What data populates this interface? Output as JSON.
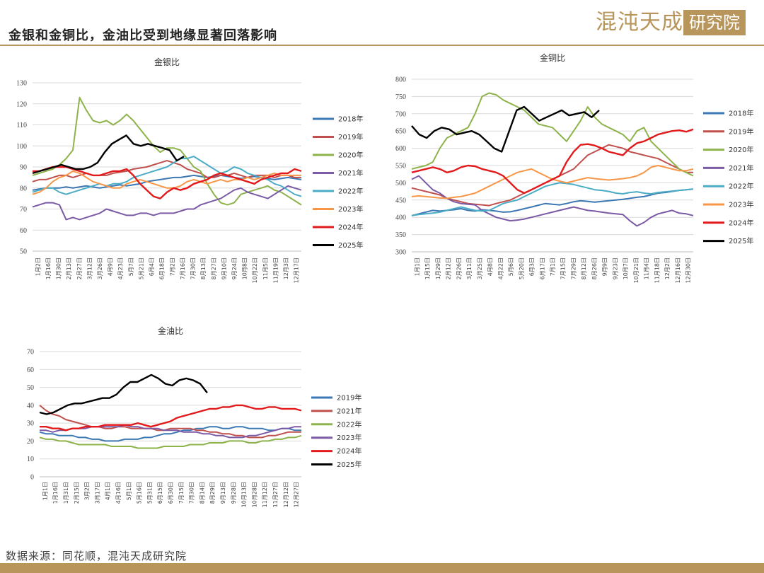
{
  "header": {
    "title": "金银和金铜比，金油比受到地缘显著回落影响"
  },
  "logo": {
    "text_left": "混沌天成",
    "text_box": "研究院"
  },
  "footer": {
    "source": "数据来源：同花顺，混沌天成研究院"
  },
  "colors": {
    "accent": "#b8955a"
  },
  "chart_data": [
    {
      "type": "line",
      "title": "金银比",
      "ylim": [
        50,
        130
      ],
      "yticks": [
        50,
        60,
        70,
        80,
        90,
        100,
        110,
        120,
        130
      ],
      "grid": true,
      "legend_position": "right",
      "xticks": [
        "1月2日",
        "1月16日",
        "1月30日",
        "2月13日",
        "2月27日",
        "3月12日",
        "3月26日",
        "4月9日",
        "4月23日",
        "5月7日",
        "5月21日",
        "6月4日",
        "6月18日",
        "7月2日",
        "7月16日",
        "7月30日",
        "8月13日",
        "8月27日",
        "9月10日",
        "9月24日",
        "10月8日",
        "10月22日",
        "11月5日",
        "11月19日",
        "12月3日",
        "12月17日"
      ],
      "series": [
        {
          "name": "2018年",
          "color": "#3c78b4",
          "values": [
            79,
            79.5,
            80,
            80,
            80,
            80.5,
            80,
            80.5,
            81,
            80.5,
            80,
            80.5,
            81,
            81.5,
            81,
            81.5,
            82,
            83,
            83.5,
            84,
            84.5,
            85,
            85,
            85.5,
            86,
            85.5,
            85,
            85.5,
            86,
            85.5,
            85,
            84.5,
            85,
            85.5,
            85,
            84.5,
            84,
            84.5,
            85,
            84.5,
            84
          ]
        },
        {
          "name": "2019年",
          "color": "#c0504d",
          "values": [
            83,
            84,
            84,
            85,
            86,
            86,
            85,
            86,
            87,
            86,
            86,
            86,
            87,
            87.5,
            88,
            89,
            89.5,
            90,
            91,
            92,
            93,
            92,
            91,
            89,
            88,
            87,
            85,
            85,
            86,
            86,
            87,
            86,
            85,
            86,
            86,
            86,
            85,
            86,
            86,
            85,
            85
          ]
        },
        {
          "name": "2020年",
          "color": "#8db34a",
          "values": [
            86,
            87,
            88,
            89,
            91,
            94,
            98,
            123,
            117,
            112,
            111,
            112,
            110,
            112,
            115,
            112,
            108,
            104,
            100,
            97,
            99,
            99,
            98,
            94,
            90,
            88,
            82,
            77,
            73,
            72,
            73,
            77,
            78,
            79,
            80,
            81,
            79,
            78,
            76,
            74,
            72
          ]
        },
        {
          "name": "2021年",
          "color": "#7b5aa6",
          "values": [
            71,
            72,
            73,
            73,
            72,
            65,
            66,
            65,
            66,
            67,
            68,
            70,
            69,
            68,
            67,
            67,
            68,
            68,
            67,
            68,
            68,
            68,
            69,
            70,
            70,
            72,
            73,
            74,
            75,
            77,
            79,
            80,
            78,
            77,
            76,
            75,
            77,
            79,
            81,
            80,
            79
          ]
        },
        {
          "name": "2022年",
          "color": "#4bacc6",
          "values": [
            78,
            79,
            80,
            80,
            78,
            77,
            78,
            79,
            80,
            81,
            82,
            81,
            82,
            82,
            83,
            85,
            86,
            87,
            88,
            89,
            90,
            92,
            94,
            94,
            95,
            93,
            91,
            89,
            87,
            88,
            90,
            89,
            87,
            86,
            85,
            84,
            82,
            81,
            79,
            77,
            76
          ]
        },
        {
          "name": "2023年",
          "color": "#f79646",
          "values": [
            77,
            78,
            80,
            83,
            85,
            86,
            88,
            87,
            85,
            83,
            82,
            81,
            80,
            80,
            82,
            83,
            84,
            83,
            82,
            81,
            80,
            80,
            81,
            83,
            84,
            83,
            82,
            83,
            84,
            83,
            84,
            84,
            85,
            84,
            85,
            86,
            87,
            86,
            86,
            86,
            86
          ]
        },
        {
          "name": "2024年",
          "color": "#e31a1c",
          "values": [
            88,
            88,
            89,
            90,
            90,
            90,
            89,
            88,
            87,
            86,
            86,
            87,
            88,
            88,
            89,
            86,
            82,
            79,
            76,
            75,
            78,
            80,
            79,
            80,
            82,
            83,
            84,
            86,
            87,
            86,
            85,
            84,
            83,
            82,
            84,
            85,
            86,
            87,
            87,
            89,
            88
          ]
        },
        {
          "name": "2025年",
          "color": "#000000",
          "values": [
            87,
            88,
            89,
            90,
            91,
            90,
            89,
            89,
            90,
            92,
            97,
            101,
            103,
            105,
            101,
            100,
            101,
            100,
            99,
            98,
            93,
            95
          ]
        }
      ]
    },
    {
      "type": "line",
      "title": "金铜比",
      "ylim": [
        300,
        800
      ],
      "yticks": [
        300,
        350,
        400,
        450,
        500,
        550,
        600,
        650,
        700,
        750,
        800
      ],
      "grid": true,
      "legend_position": "right",
      "xticks": [
        "1月1日",
        "1月15日",
        "1月29日",
        "2月12日",
        "2月26日",
        "3月11日",
        "3月25日",
        "4月8日",
        "4月22日",
        "5月6日",
        "5月20日",
        "6月3日",
        "6月17日",
        "7月1日",
        "7月15日",
        "7月29日",
        "8月12日",
        "8月26日",
        "9月9日",
        "9月23日",
        "10月7日",
        "10月21日",
        "11月4日",
        "11月18日",
        "12月2日",
        "12月16日",
        "12月30日"
      ],
      "series": [
        {
          "name": "2018年",
          "color": "#3c78b4",
          "values": [
            405,
            410,
            415,
            420,
            418,
            420,
            422,
            425,
            420,
            418,
            422,
            420,
            418,
            415,
            416,
            420,
            425,
            430,
            435,
            440,
            438,
            436,
            440,
            445,
            448,
            446,
            444,
            446,
            448,
            450,
            452,
            455,
            458,
            460,
            465,
            470,
            472,
            475,
            478,
            480,
            482
          ]
        },
        {
          "name": "2019年",
          "color": "#c0504d",
          "values": [
            485,
            480,
            475,
            470,
            465,
            455,
            450,
            445,
            440,
            438,
            436,
            434,
            440,
            445,
            450,
            460,
            470,
            480,
            490,
            500,
            510,
            520,
            530,
            540,
            560,
            580,
            590,
            600,
            610,
            605,
            600,
            590,
            585,
            580,
            575,
            570,
            560,
            550,
            540,
            530,
            530
          ]
        },
        {
          "name": "2020年",
          "color": "#8db34a",
          "values": [
            540,
            545,
            550,
            560,
            600,
            630,
            640,
            650,
            660,
            700,
            750,
            760,
            755,
            740,
            730,
            720,
            710,
            690,
            670,
            665,
            660,
            640,
            620,
            650,
            680,
            720,
            690,
            670,
            660,
            650,
            640,
            620,
            650,
            660,
            620,
            600,
            580,
            560,
            540,
            530,
            520
          ]
        },
        {
          "name": "2021年",
          "color": "#7b5aa6",
          "values": [
            510,
            520,
            500,
            480,
            470,
            455,
            445,
            440,
            438,
            436,
            420,
            410,
            400,
            395,
            390,
            392,
            395,
            400,
            405,
            410,
            415,
            420,
            425,
            430,
            425,
            420,
            418,
            415,
            412,
            410,
            408,
            390,
            375,
            385,
            400,
            410,
            415,
            420,
            412,
            410,
            405
          ]
        },
        {
          "name": "2022年",
          "color": "#4bacc6",
          "values": [
            405,
            408,
            410,
            412,
            415,
            420,
            425,
            430,
            425,
            420,
            418,
            420,
            430,
            440,
            445,
            450,
            460,
            470,
            480,
            490,
            495,
            500,
            498,
            495,
            490,
            485,
            480,
            478,
            475,
            470,
            468,
            472,
            474,
            470,
            468,
            472,
            474,
            476,
            478,
            480,
            482
          ]
        },
        {
          "name": "2023年",
          "color": "#f79646",
          "values": [
            460,
            462,
            460,
            458,
            456,
            455,
            458,
            460,
            465,
            470,
            480,
            490,
            500,
            510,
            520,
            530,
            535,
            540,
            530,
            520,
            510,
            505,
            500,
            505,
            510,
            515,
            512,
            510,
            508,
            510,
            512,
            515,
            520,
            530,
            545,
            550,
            545,
            540,
            535,
            535,
            540
          ]
        },
        {
          "name": "2024年",
          "color": "#e31a1c",
          "values": [
            530,
            535,
            540,
            545,
            540,
            530,
            535,
            545,
            550,
            548,
            540,
            535,
            530,
            520,
            500,
            480,
            470,
            480,
            490,
            500,
            510,
            520,
            560,
            590,
            610,
            612,
            608,
            600,
            590,
            585,
            580,
            600,
            615,
            620,
            630,
            640,
            645,
            650,
            652,
            648,
            655
          ]
        },
        {
          "name": "2025年",
          "color": "#000000",
          "values": [
            665,
            640,
            630,
            650,
            660,
            655,
            640,
            645,
            650,
            640,
            620,
            600,
            590,
            650,
            710,
            720,
            700,
            680,
            690,
            700,
            710,
            695,
            700,
            705,
            690,
            710
          ]
        }
      ]
    },
    {
      "type": "line",
      "title": "金油比",
      "ylim": [
        0,
        70
      ],
      "yticks": [
        0,
        10,
        20,
        30,
        40,
        50,
        60,
        70
      ],
      "grid": true,
      "legend_position": "right",
      "xticks": [
        "1月1日",
        "1月16日",
        "1月31日",
        "2月15日",
        "3月2日",
        "3月17日",
        "4月1日",
        "4月16日",
        "5月1日",
        "5月16日",
        "5月31日",
        "6月15日",
        "6月30日",
        "7月15日",
        "7月30日",
        "8月14日",
        "8月29日",
        "9月13日",
        "9月28日",
        "10月13日",
        "10月28日",
        "11月12日",
        "11月27日",
        "12月12日",
        "12月27日"
      ],
      "series": [
        {
          "name": "2019年",
          "color": "#3c78b4",
          "values": [
            25,
            24,
            24,
            23,
            23,
            23,
            22,
            22,
            21,
            21,
            20,
            20,
            20,
            21,
            21,
            21,
            22,
            22,
            23,
            24,
            24,
            25,
            26,
            26,
            27,
            27,
            28,
            28,
            27,
            27,
            28,
            28,
            27,
            27,
            27,
            26,
            26,
            27,
            27,
            26,
            26
          ]
        },
        {
          "name": "2021年",
          "color": "#c0504d",
          "values": [
            40,
            37,
            35,
            34,
            32,
            31,
            30,
            29,
            28,
            28,
            27,
            27,
            28,
            28,
            27,
            27,
            27,
            27,
            26,
            26,
            27,
            27,
            27,
            27,
            26,
            26,
            25,
            25,
            24,
            24,
            23,
            23,
            22,
            22,
            22,
            23,
            23,
            24,
            25,
            25,
            25
          ]
        },
        {
          "name": "2022年",
          "color": "#8db34a",
          "values": [
            22,
            21,
            21,
            20,
            20,
            19,
            18,
            18,
            18,
            18,
            18,
            17,
            17,
            17,
            17,
            16,
            16,
            16,
            16,
            17,
            17,
            17,
            17,
            18,
            18,
            18,
            19,
            19,
            19,
            20,
            20,
            20,
            19,
            19,
            20,
            20,
            21,
            21,
            22,
            22,
            23
          ]
        },
        {
          "name": "2023年",
          "color": "#7b5aa6",
          "values": [
            26,
            26,
            25,
            26,
            26,
            27,
            27,
            27,
            28,
            28,
            28,
            28,
            28,
            29,
            28,
            28,
            27,
            27,
            27,
            26,
            26,
            26,
            25,
            25,
            25,
            24,
            24,
            23,
            23,
            22,
            22,
            22,
            23,
            23,
            24,
            25,
            26,
            27,
            27,
            28,
            28
          ]
        },
        {
          "name": "2024年",
          "color": "#e31a1c",
          "values": [
            28,
            28,
            27,
            27,
            26,
            27,
            27,
            28,
            28,
            28,
            29,
            29,
            29,
            29,
            29,
            30,
            29,
            28,
            29,
            30,
            31,
            33,
            34,
            35,
            36,
            37,
            38,
            38,
            39,
            39,
            40,
            40,
            39,
            38,
            38,
            39,
            39,
            38,
            38,
            38,
            37
          ]
        },
        {
          "name": "2025年",
          "color": "#000000",
          "values": [
            36,
            35,
            36,
            38,
            40,
            41,
            41,
            42,
            43,
            44,
            44,
            46,
            50,
            53,
            53,
            55,
            57,
            55,
            52,
            51,
            54,
            55,
            54,
            52,
            47
          ]
        }
      ]
    }
  ]
}
